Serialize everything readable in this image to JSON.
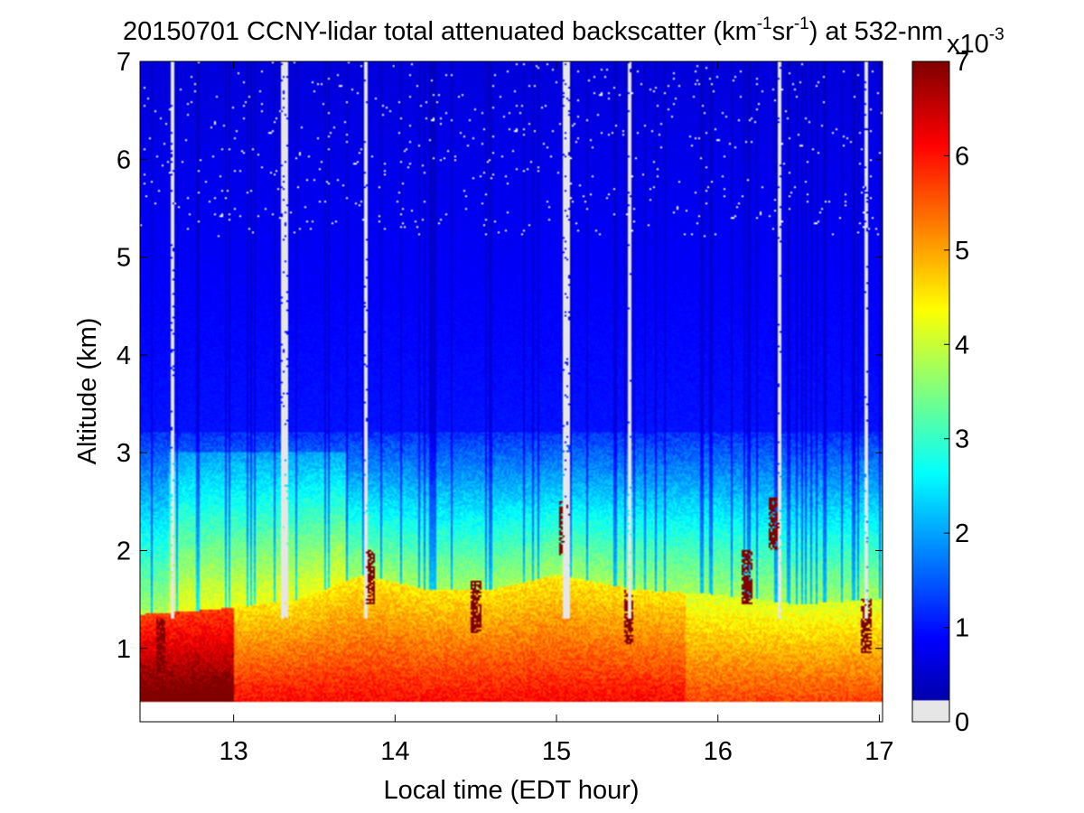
{
  "chart_data": {
    "type": "heatmap",
    "title": {
      "prefix": "20150701 CCNY-lidar total attenuated backscatter (km",
      "sup1": "-1",
      "mid": "sr",
      "sup2": "-1",
      "suffix": ") at 532-nm"
    },
    "xlabel": "Local time (EDT hour)",
    "ylabel": "Altitude (km)",
    "xlim": [
      12.42,
      17.02
    ],
    "ylim": [
      0.25,
      7.0
    ],
    "data_bottom_km": 0.45,
    "xticks": [
      13,
      14,
      15,
      16,
      17
    ],
    "yticks": [
      1,
      2,
      3,
      4,
      5,
      6,
      7
    ],
    "colorbar": {
      "min": 0,
      "max": 7,
      "ticks": [
        0,
        1,
        2,
        3,
        4,
        5,
        6,
        7
      ],
      "multiplier_base": "x10",
      "multiplier_exp": "-3",
      "below_min_color": "#e6e6e6"
    },
    "colormap": [
      "#00008f",
      "#0000ff",
      "#00ffff",
      "#ffff00",
      "#ff0000",
      "#800000"
    ],
    "layer_profile": {
      "description_points_hour_topkm": [
        [
          12.45,
          1.35
        ],
        [
          12.9,
          1.4
        ],
        [
          13.4,
          1.5
        ],
        [
          13.8,
          1.75
        ],
        [
          14.2,
          1.6
        ],
        [
          14.6,
          1.6
        ],
        [
          15.0,
          1.75
        ],
        [
          15.5,
          1.6
        ],
        [
          16.0,
          1.55
        ],
        [
          16.5,
          1.45
        ],
        [
          17.0,
          1.5
        ]
      ]
    },
    "cloud_patches_hour_km_valuehigh": [
      [
        12.55,
        1.2
      ],
      [
        13.85,
        1.9
      ],
      [
        14.5,
        1.6
      ],
      [
        15.05,
        2.4
      ],
      [
        15.45,
        1.5
      ],
      [
        16.18,
        1.9
      ],
      [
        16.35,
        2.45
      ],
      [
        16.92,
        1.4
      ]
    ],
    "missing_profiles_hours": [
      12.62,
      13.3,
      13.33,
      13.82,
      15.05,
      15.07,
      15.45,
      16.38,
      16.92
    ]
  }
}
